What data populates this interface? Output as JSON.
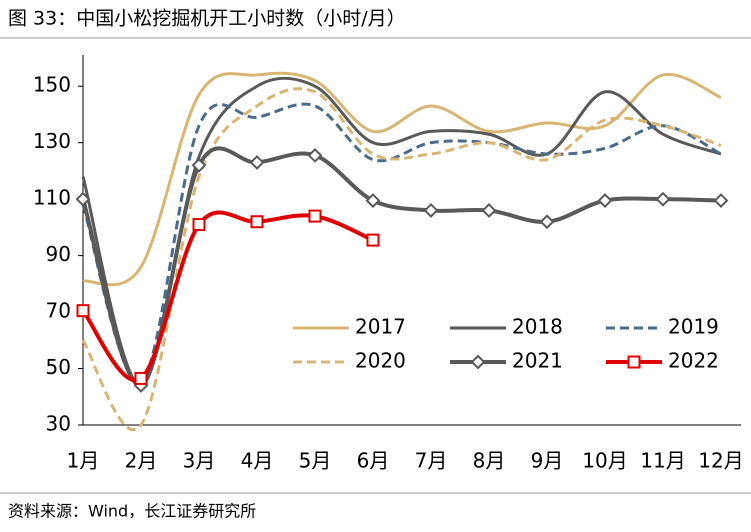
{
  "chart_data": {
    "type": "line",
    "title": "图 33：中国小松挖掘机开工小时数（小时/月）",
    "source": "资料来源：Wind，长江证券研究所",
    "categories": [
      "1月",
      "2月",
      "3月",
      "4月",
      "5月",
      "6月",
      "7月",
      "8月",
      "9月",
      "10月",
      "11月",
      "12月"
    ],
    "ylim": [
      30,
      160
    ],
    "yticks": [
      30,
      50,
      70,
      90,
      110,
      130,
      150
    ],
    "grid": false,
    "smooth": true,
    "legend": "lower right",
    "series": [
      {
        "name": "2017",
        "color": "#d9b574",
        "width": 3,
        "dash": false,
        "marker": "none",
        "values": [
          81,
          86,
          147,
          154,
          152,
          134,
          143,
          134,
          137,
          136,
          154,
          146
        ]
      },
      {
        "name": "2018",
        "color": "#595959",
        "width": 3,
        "dash": false,
        "marker": "none",
        "values": [
          118,
          44,
          125,
          150,
          150,
          130,
          134,
          133,
          126,
          148,
          133,
          126
        ]
      },
      {
        "name": "2019",
        "color": "#4a6b8a",
        "width": 3,
        "dash": true,
        "marker": "none",
        "values": [
          108,
          45,
          136,
          139,
          143,
          124,
          130,
          130,
          126,
          128,
          136,
          126
        ]
      },
      {
        "name": "2020",
        "color": "#d9b574",
        "width": 3,
        "dash": true,
        "marker": "none",
        "values": [
          60,
          30,
          118,
          143,
          148,
          126,
          126,
          130,
          124,
          138,
          136,
          129
        ]
      },
      {
        "name": "2021",
        "color": "#595959",
        "width": 4,
        "dash": false,
        "marker": "diamond",
        "values": [
          110,
          44,
          122,
          123,
          125.5,
          109.5,
          106,
          106,
          102,
          109.5,
          110,
          109.5
        ]
      },
      {
        "name": "2022",
        "color": "#e00000",
        "width": 4,
        "dash": false,
        "marker": "square",
        "values": [
          70.5,
          46.5,
          101,
          102,
          104,
          95.5,
          null,
          null,
          null,
          null,
          null,
          null
        ]
      }
    ]
  }
}
